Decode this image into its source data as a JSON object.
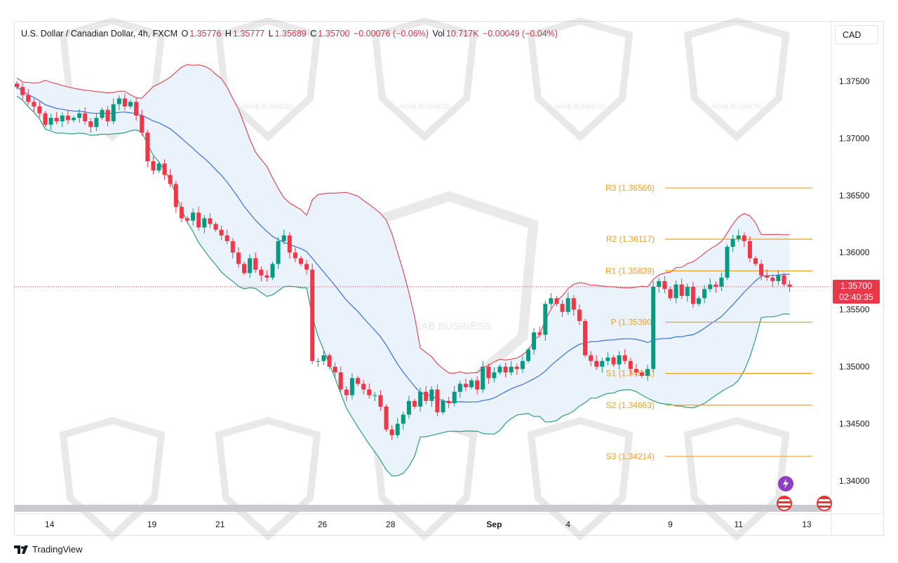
{
  "header": {
    "symbol": "U.S. Dollar / Canadian Dollar, 4h, FXCM",
    "o_label": "O",
    "o": "1.35776",
    "h_label": "H",
    "h": "1.35777",
    "l_label": "L",
    "l": "1.35689",
    "c_label": "C",
    "c": "1.35700",
    "change": "−0.00076 (−0.06%)",
    "vol_label": "Vol",
    "vol": "10.717K",
    "vol_change": "−0.00049 (−0.04%)"
  },
  "currency_button": "CAD",
  "last_price": {
    "price": "1.35700",
    "countdown": "02:40:35"
  },
  "brand": "TradingView",
  "watermark": "ARAB BUSINESS Academy L.L.C",
  "colors": {
    "up": "#089981",
    "down": "#f23645",
    "upper_band": "#e04b5a",
    "lower_band": "#2e9e7c",
    "basis": "#3a6fd8",
    "band_fill": "#eaf3fb",
    "pivot": "#f0a020"
  },
  "chart_data": {
    "type": "candlestick",
    "title": "USDCAD 4h",
    "ylim": [
      1.3375,
      1.3795
    ],
    "y_ticks": [
      "1.37500",
      "1.37000",
      "1.36500",
      "1.36000",
      "1.35500",
      "1.35000",
      "1.34500",
      "1.34000"
    ],
    "x_ticks": [
      {
        "label": "14",
        "i": 7
      },
      {
        "label": "19",
        "i": 25
      },
      {
        "label": "21",
        "i": 37
      },
      {
        "label": "26",
        "i": 55
      },
      {
        "label": "28",
        "i": 67
      },
      {
        "label": "Sep",
        "i": 84
      },
      {
        "label": "4",
        "i": 97
      },
      {
        "label": "9",
        "i": 115
      },
      {
        "label": "11",
        "i": 127
      },
      {
        "label": "13",
        "i": 139
      }
    ],
    "closes": [
      1.3745,
      1.3738,
      1.3732,
      1.3728,
      1.3722,
      1.3712,
      1.3718,
      1.3715,
      1.372,
      1.3716,
      1.3718,
      1.3722,
      1.3715,
      1.371,
      1.3718,
      1.3725,
      1.3715,
      1.373,
      1.3735,
      1.3728,
      1.3732,
      1.372,
      1.3705,
      1.368,
      1.3672,
      1.3678,
      1.3668,
      1.366,
      1.364,
      1.363,
      1.3628,
      1.3635,
      1.3622,
      1.363,
      1.3625,
      1.362,
      1.3615,
      1.361,
      1.36,
      1.359,
      1.3582,
      1.3595,
      1.3585,
      1.358,
      1.3578,
      1.359,
      1.361,
      1.3615,
      1.36,
      1.3595,
      1.359,
      1.3585,
      1.3505,
      1.3505,
      1.351,
      1.35,
      1.3495,
      1.348,
      1.3475,
      1.349,
      1.3485,
      1.348,
      1.3475,
      1.3475,
      1.3465,
      1.3445,
      1.344,
      1.345,
      1.3458,
      1.347,
      1.3465,
      1.3478,
      1.347,
      1.348,
      1.346,
      1.347,
      1.3468,
      1.3478,
      1.3485,
      1.3482,
      1.3488,
      1.348,
      1.35,
      1.349,
      1.3495,
      1.35,
      1.3495,
      1.35,
      1.3498,
      1.3505,
      1.3515,
      1.353,
      1.3528,
      1.3555,
      1.356,
      1.3555,
      1.3548,
      1.356,
      1.355,
      1.354,
      1.351,
      1.3505,
      1.35,
      1.3505,
      1.3508,
      1.3502,
      1.351,
      1.3505,
      1.3498,
      1.3495,
      1.3492,
      1.3498,
      1.357,
      1.3575,
      1.3568,
      1.356,
      1.3572,
      1.3562,
      1.357,
      1.3555,
      1.356,
      1.3568,
      1.3572,
      1.357,
      1.3578,
      1.3605,
      1.3612,
      1.3615,
      1.361,
      1.3595,
      1.359,
      1.358,
      1.3578,
      1.3575,
      1.358,
      1.3572,
      1.357
    ],
    "first_open": 1.3748,
    "indicators": {
      "bollinger": {
        "period": 20,
        "stddev": 2
      }
    },
    "pivots": [
      {
        "label": "R3 (1.36566)",
        "value": 1.36566
      },
      {
        "label": "R2 (1.36117)",
        "value": 1.36117
      },
      {
        "label": "R1 (1.35839)",
        "value": 1.35839
      },
      {
        "label": "P (1.35390)",
        "value": 1.3539
      },
      {
        "label": "S1 (1.34941)",
        "value": 1.34941
      },
      {
        "label": "S2 (1.34663)",
        "value": 1.34663
      },
      {
        "label": "S3 (1.34214)",
        "value": 1.34214
      }
    ],
    "last_price_value": 1.357
  }
}
